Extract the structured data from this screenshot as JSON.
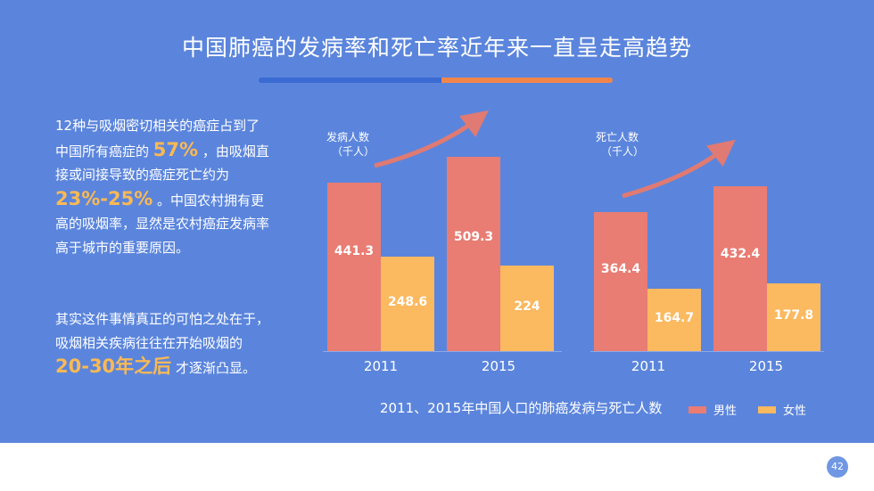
{
  "title": "中国肺癌的发病率和死亡率近年来一直呈走高趋势",
  "paragraph1": {
    "part1": "12种与吸烟密切相关的癌症占到了中国所有癌症的",
    "hl1": "57%",
    "part2": "，由吸烟直接或间接导致的癌症死亡约为",
    "hl2": "23%-25%",
    "part3": "。中国农村拥有更高的吸烟率，显然是农村癌症发病率高于城市的重要原因。"
  },
  "paragraph2": {
    "part1": "其实这件事情真正的可怕之处在于，吸烟相关疾病往往在开始吸烟的",
    "hl1": "20-30年之后",
    "part2": "才逐渐凸显。"
  },
  "chart_data": [
    {
      "type": "bar",
      "ylabel": "发病人数",
      "unit": "（千人）",
      "categories": [
        "2011",
        "2015"
      ],
      "series": [
        {
          "name": "男性",
          "values": [
            441.3,
            509.3
          ]
        },
        {
          "name": "女性",
          "values": [
            248.6,
            224
          ]
        }
      ],
      "value_labels": {
        "男性": [
          "441.3",
          "509.3"
        ],
        "女性": [
          "248.6",
          "224"
        ]
      }
    },
    {
      "type": "bar",
      "ylabel": "死亡人数",
      "unit": "（千人）",
      "categories": [
        "2011",
        "2015"
      ],
      "series": [
        {
          "name": "男性",
          "values": [
            364.4,
            432.4
          ]
        },
        {
          "name": "女性",
          "values": [
            164.7,
            177.8
          ]
        }
      ],
      "value_labels": {
        "男性": [
          "364.4",
          "432.4"
        ],
        "女性": [
          "164.7",
          "177.8"
        ]
      }
    }
  ],
  "caption": "2011、2015年中国人口的肺癌发病与死亡人数",
  "legend": {
    "male": "男性",
    "female": "女性"
  },
  "colors": {
    "male": "#e97c73",
    "female": "#fbb960",
    "background": "#5b85dc",
    "arrow": "#e07a72"
  },
  "page_number": "42"
}
